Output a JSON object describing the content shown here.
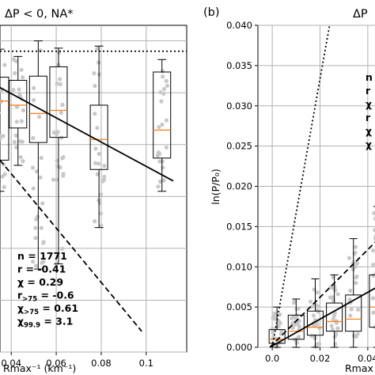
{
  "chart_data": [
    {
      "type": "box",
      "title": "ΔP < 0, NA*",
      "xlabel": "Rmax⁻¹ (km⁻¹)",
      "ylabel": "",
      "x_visible_range": [
        0.035,
        0.118
      ],
      "y_visible_range": [
        0.0,
        0.0315
      ],
      "x_ticks": [
        "0.04",
        "0.06",
        "0.08",
        "0.1"
      ],
      "x_tick_values": [
        0.04,
        0.06,
        0.08,
        0.1
      ],
      "grid": true,
      "boxes": [
        {
          "x": 0.035,
          "q1": 0.0185,
          "median": 0.0242,
          "q3": 0.0265,
          "whislo": 0.0155,
          "whishi": 0.0292
        },
        {
          "x": 0.043,
          "q1": 0.0216,
          "median": 0.0238,
          "q3": 0.0262,
          "whislo": 0.018,
          "whishi": 0.0285
        },
        {
          "x": 0.052,
          "q1": 0.0202,
          "median": 0.023,
          "q3": 0.0266,
          "whislo": 0.008,
          "whishi": 0.03
        },
        {
          "x": 0.061,
          "q1": 0.0207,
          "median": 0.0233,
          "q3": 0.0275,
          "whislo": 0.0085,
          "whishi": 0.0293
        },
        {
          "x": 0.079,
          "q1": 0.0176,
          "median": 0.0205,
          "q3": 0.0238,
          "whislo": 0.012,
          "whishi": 0.0295
        },
        {
          "x": 0.107,
          "q1": 0.0187,
          "median": 0.0214,
          "q3": 0.027,
          "whislo": 0.0155,
          "whishi": 0.0282
        }
      ],
      "lines": [
        {
          "style": "solid",
          "points": [
            [
              0.035,
              0.0255
            ],
            [
              0.112,
              0.0165
            ]
          ]
        },
        {
          "style": "dashed",
          "points": [
            [
              0.035,
              0.0185
            ],
            [
              0.098,
              0.002
            ]
          ]
        },
        {
          "style": "dotted",
          "points": [
            [
              0.035,
              0.029
            ],
            [
              0.118,
              0.029
            ]
          ]
        }
      ],
      "annotations": [
        {
          "key": "n",
          "text": "n = 1771"
        },
        {
          "key": "r",
          "text": "r = -0.41"
        },
        {
          "key": "chi",
          "text": "χ = 0.29"
        },
        {
          "key": "r75",
          "text": "r",
          "sub": ">75",
          "tail": " = -0.6"
        },
        {
          "key": "chi75",
          "text": "χ",
          "sub": ">75",
          "tail": " = 0.61"
        },
        {
          "key": "chi999",
          "text": "χ",
          "sub": "99.9",
          "tail": " = 3.1"
        }
      ]
    },
    {
      "panel_label": "(b)",
      "type": "box",
      "title": "ΔP",
      "xlabel": "Rmax",
      "ylabel": "ln(P/P₀)",
      "y_ticks": [
        "0.000",
        "0.005",
        "0.010",
        "0.015",
        "0.020",
        "0.025",
        "0.030",
        "0.035",
        "0.040"
      ],
      "y_tick_values": [
        0,
        0.005,
        0.01,
        0.015,
        0.02,
        0.025,
        0.03,
        0.035,
        0.04
      ],
      "x_ticks": [
        "0.0",
        "0.02",
        "0.04"
      ],
      "x_tick_values": [
        0.0,
        0.02,
        0.04
      ],
      "ylim": [
        0.0,
        0.04
      ],
      "x_visible_range": [
        -0.006,
        0.047
      ],
      "grid": true,
      "boxes": [
        {
          "x": 0.002,
          "q1": 0.0005,
          "median": 0.001,
          "q3": 0.0022,
          "whislo": 0.0,
          "whishi": 0.005
        },
        {
          "x": 0.01,
          "q1": 0.001,
          "median": 0.002,
          "q3": 0.004,
          "whislo": 0.0,
          "whishi": 0.006
        },
        {
          "x": 0.018,
          "q1": 0.0015,
          "median": 0.0025,
          "q3": 0.0045,
          "whislo": 0.0,
          "whishi": 0.0085
        },
        {
          "x": 0.026,
          "q1": 0.002,
          "median": 0.0032,
          "q3": 0.0055,
          "whislo": 0.0,
          "whishi": 0.009
        },
        {
          "x": 0.034,
          "q1": 0.002,
          "median": 0.0035,
          "q3": 0.0065,
          "whislo": 0.0,
          "whishi": 0.0135
        },
        {
          "x": 0.044,
          "q1": 0.0025,
          "median": 0.005,
          "q3": 0.009,
          "whislo": 0.0,
          "whishi": 0.0175
        }
      ],
      "lines": [
        {
          "style": "solid",
          "points": [
            [
              -0.001,
              0.0
            ],
            [
              0.047,
              0.008
            ]
          ]
        },
        {
          "style": "dashed",
          "points": [
            [
              -0.001,
              0.0
            ],
            [
              0.047,
              0.0142
            ]
          ]
        },
        {
          "style": "dotted",
          "points": [
            [
              0.0,
              0.0
            ],
            [
              0.024,
              0.04
            ]
          ]
        }
      ],
      "annotations": [
        {
          "key": "n",
          "text": "n"
        },
        {
          "key": "r",
          "text": "r"
        },
        {
          "key": "chi",
          "text": "χ"
        },
        {
          "key": "r75",
          "text": "r"
        },
        {
          "key": "chi75",
          "text": "χ"
        },
        {
          "key": "chi999",
          "text": "χ"
        }
      ]
    }
  ],
  "colors": {
    "box": "#000000",
    "median": "#f5821f",
    "points": "#c8c8c8",
    "grid": "#b0b0b0"
  }
}
